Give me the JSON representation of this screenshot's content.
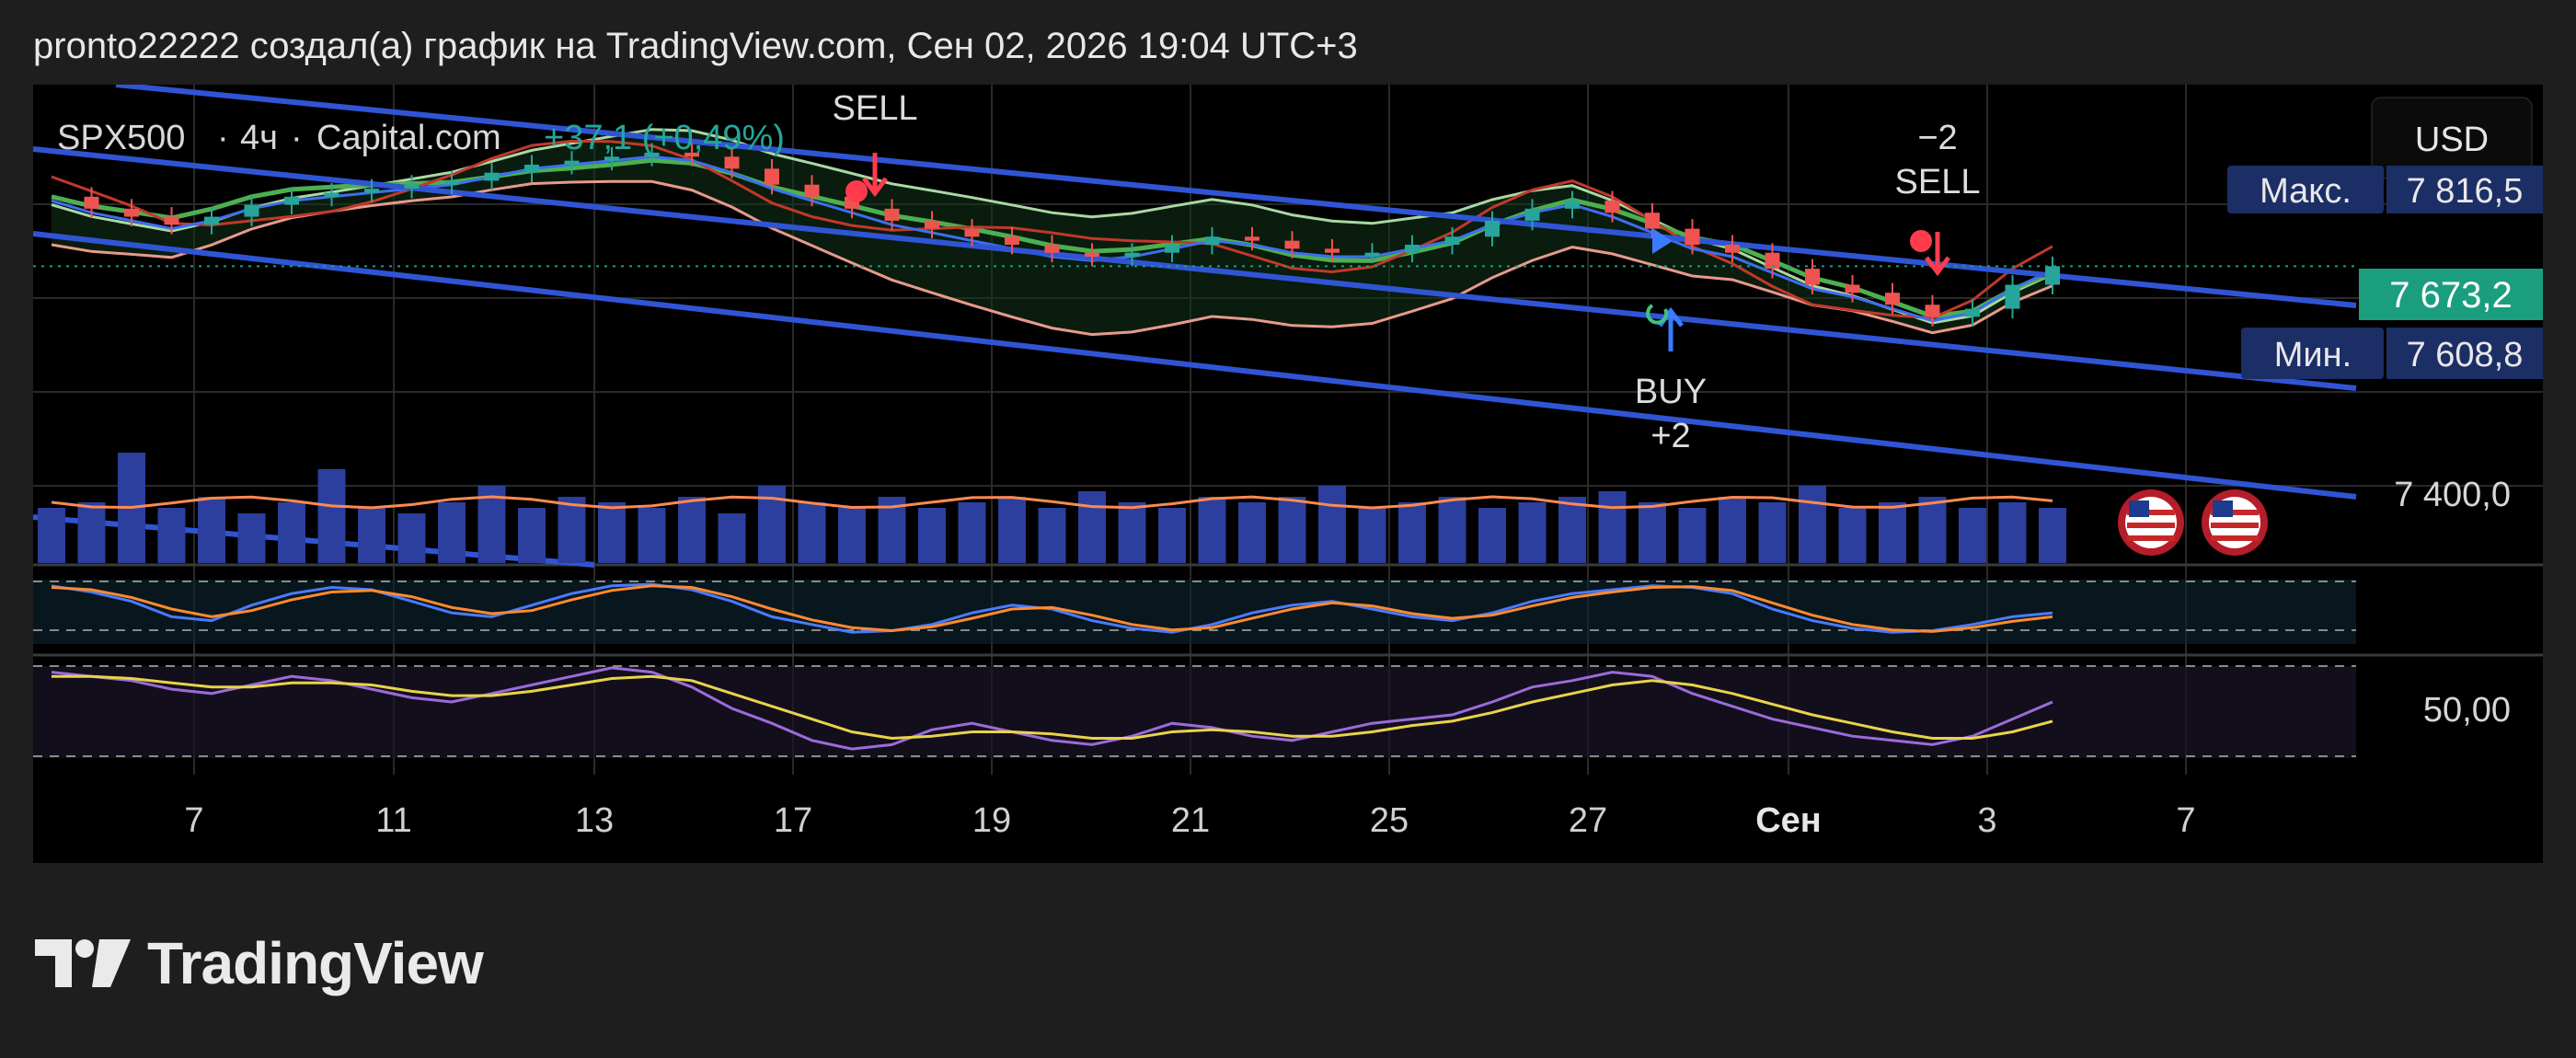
{
  "header": {
    "caption": "pronto22222 создал(а) график на TradingView.com, Сен 02, 2026 19:04 UTC+3"
  },
  "footer": {
    "brand": "TradingView"
  },
  "colors": {
    "background": "#000000",
    "grid": "#2a2a2a",
    "up": "#26a69a",
    "down": "#ef5350",
    "channel": "#2f55d4",
    "volume": "#2c3f9e",
    "price_label": "#1a9e7e",
    "max_min_label": "#1c2e66"
  },
  "chart_data": [
    {
      "type": "line",
      "symbol": "SPX500",
      "timeframe": "4ч",
      "source": "Capital.com",
      "change": "+37,1 (+0,49%)",
      "currency": "USD",
      "x_tick_labels": [
        "7",
        "11",
        "13",
        "17",
        "19",
        "21",
        "25",
        "27",
        "Сен",
        "3",
        "7"
      ],
      "y_tick_labels": [
        "7 400,0"
      ],
      "last_price": "7 673,2",
      "max_label": "Макс.",
      "max_value": "7 816,5",
      "min_label": "Мин.",
      "min_value": "7 608,8",
      "annotations": [
        "SELL",
        "−2",
        "SELL",
        "BUY",
        "+2"
      ],
      "ylim": [
        7300,
        7900
      ],
      "price_series": [
        7760,
        7745,
        7735,
        7725,
        7735,
        7750,
        7760,
        7765,
        7770,
        7775,
        7780,
        7790,
        7800,
        7805,
        7810,
        7815,
        7810,
        7795,
        7775,
        7760,
        7745,
        7730,
        7720,
        7710,
        7700,
        7690,
        7685,
        7690,
        7700,
        7710,
        7705,
        7695,
        7690,
        7690,
        7700,
        7710,
        7730,
        7745,
        7755,
        7740,
        7720,
        7700,
        7690,
        7670,
        7650,
        7640,
        7625,
        7610,
        7620,
        7650,
        7673.2
      ],
      "trend_channel": "descending",
      "markers": [
        "SELL",
        "SELL",
        "BUY"
      ],
      "legend_position": "top-left"
    },
    {
      "type": "bar",
      "name": "volume",
      "values": [
        0.5,
        0.55,
        1.0,
        0.5,
        0.6,
        0.45,
        0.55,
        0.85,
        0.5,
        0.45,
        0.55,
        0.7,
        0.5,
        0.6,
        0.55,
        0.5,
        0.6,
        0.45,
        0.7,
        0.55,
        0.5,
        0.6,
        0.5,
        0.55,
        0.6,
        0.5,
        0.65,
        0.55,
        0.5,
        0.6,
        0.55,
        0.6,
        0.7,
        0.5,
        0.55,
        0.6,
        0.5,
        0.55,
        0.6,
        0.65,
        0.55,
        0.5,
        0.6,
        0.55,
        0.7,
        0.5,
        0.55,
        0.6,
        0.5,
        0.55,
        0.5
      ]
    },
    {
      "type": "line",
      "name": "stochastic",
      "series": [
        {
          "values": [
            80,
            72,
            60,
            40,
            35,
            55,
            70,
            78,
            75,
            60,
            45,
            40,
            55,
            70,
            80,
            82,
            75,
            60,
            40,
            30,
            20,
            22,
            30,
            45,
            55,
            50,
            35,
            25,
            20,
            30,
            45,
            55,
            60,
            50,
            40,
            35,
            45,
            60,
            70,
            75,
            80,
            78,
            70,
            50,
            35,
            25,
            20,
            22,
            30,
            40,
            45
          ]
        },
        {
          "values": [
            78,
            75,
            65,
            50,
            40,
            48,
            62,
            72,
            74,
            66,
            52,
            44,
            48,
            62,
            74,
            80,
            78,
            66,
            50,
            36,
            26,
            22,
            27,
            38,
            50,
            52,
            42,
            30,
            23,
            26,
            38,
            50,
            58,
            54,
            44,
            38,
            42,
            54,
            65,
            72,
            78,
            79,
            74,
            58,
            42,
            30,
            23,
            21,
            26,
            34,
            40
          ]
        }
      ]
    },
    {
      "type": "line",
      "name": "rsi",
      "y_tick_labels": [
        "50,00"
      ],
      "series": [
        {
          "values": [
            62,
            60,
            58,
            54,
            52,
            56,
            60,
            58,
            54,
            50,
            48,
            52,
            56,
            60,
            64,
            62,
            55,
            45,
            38,
            30,
            26,
            28,
            35,
            38,
            34,
            30,
            28,
            32,
            38,
            36,
            32,
            30,
            34,
            38,
            40,
            42,
            48,
            55,
            58,
            62,
            60,
            52,
            46,
            40,
            36,
            32,
            30,
            28,
            32,
            40,
            48
          ]
        },
        {
          "values": [
            60,
            60,
            59,
            57,
            55,
            55,
            57,
            57,
            56,
            53,
            51,
            51,
            53,
            56,
            59,
            60,
            58,
            52,
            46,
            40,
            34,
            31,
            32,
            34,
            34,
            33,
            31,
            31,
            34,
            35,
            34,
            32,
            32,
            34,
            37,
            39,
            43,
            48,
            52,
            56,
            58,
            56,
            52,
            47,
            42,
            38,
            34,
            31,
            31,
            34,
            39
          ]
        }
      ]
    }
  ]
}
